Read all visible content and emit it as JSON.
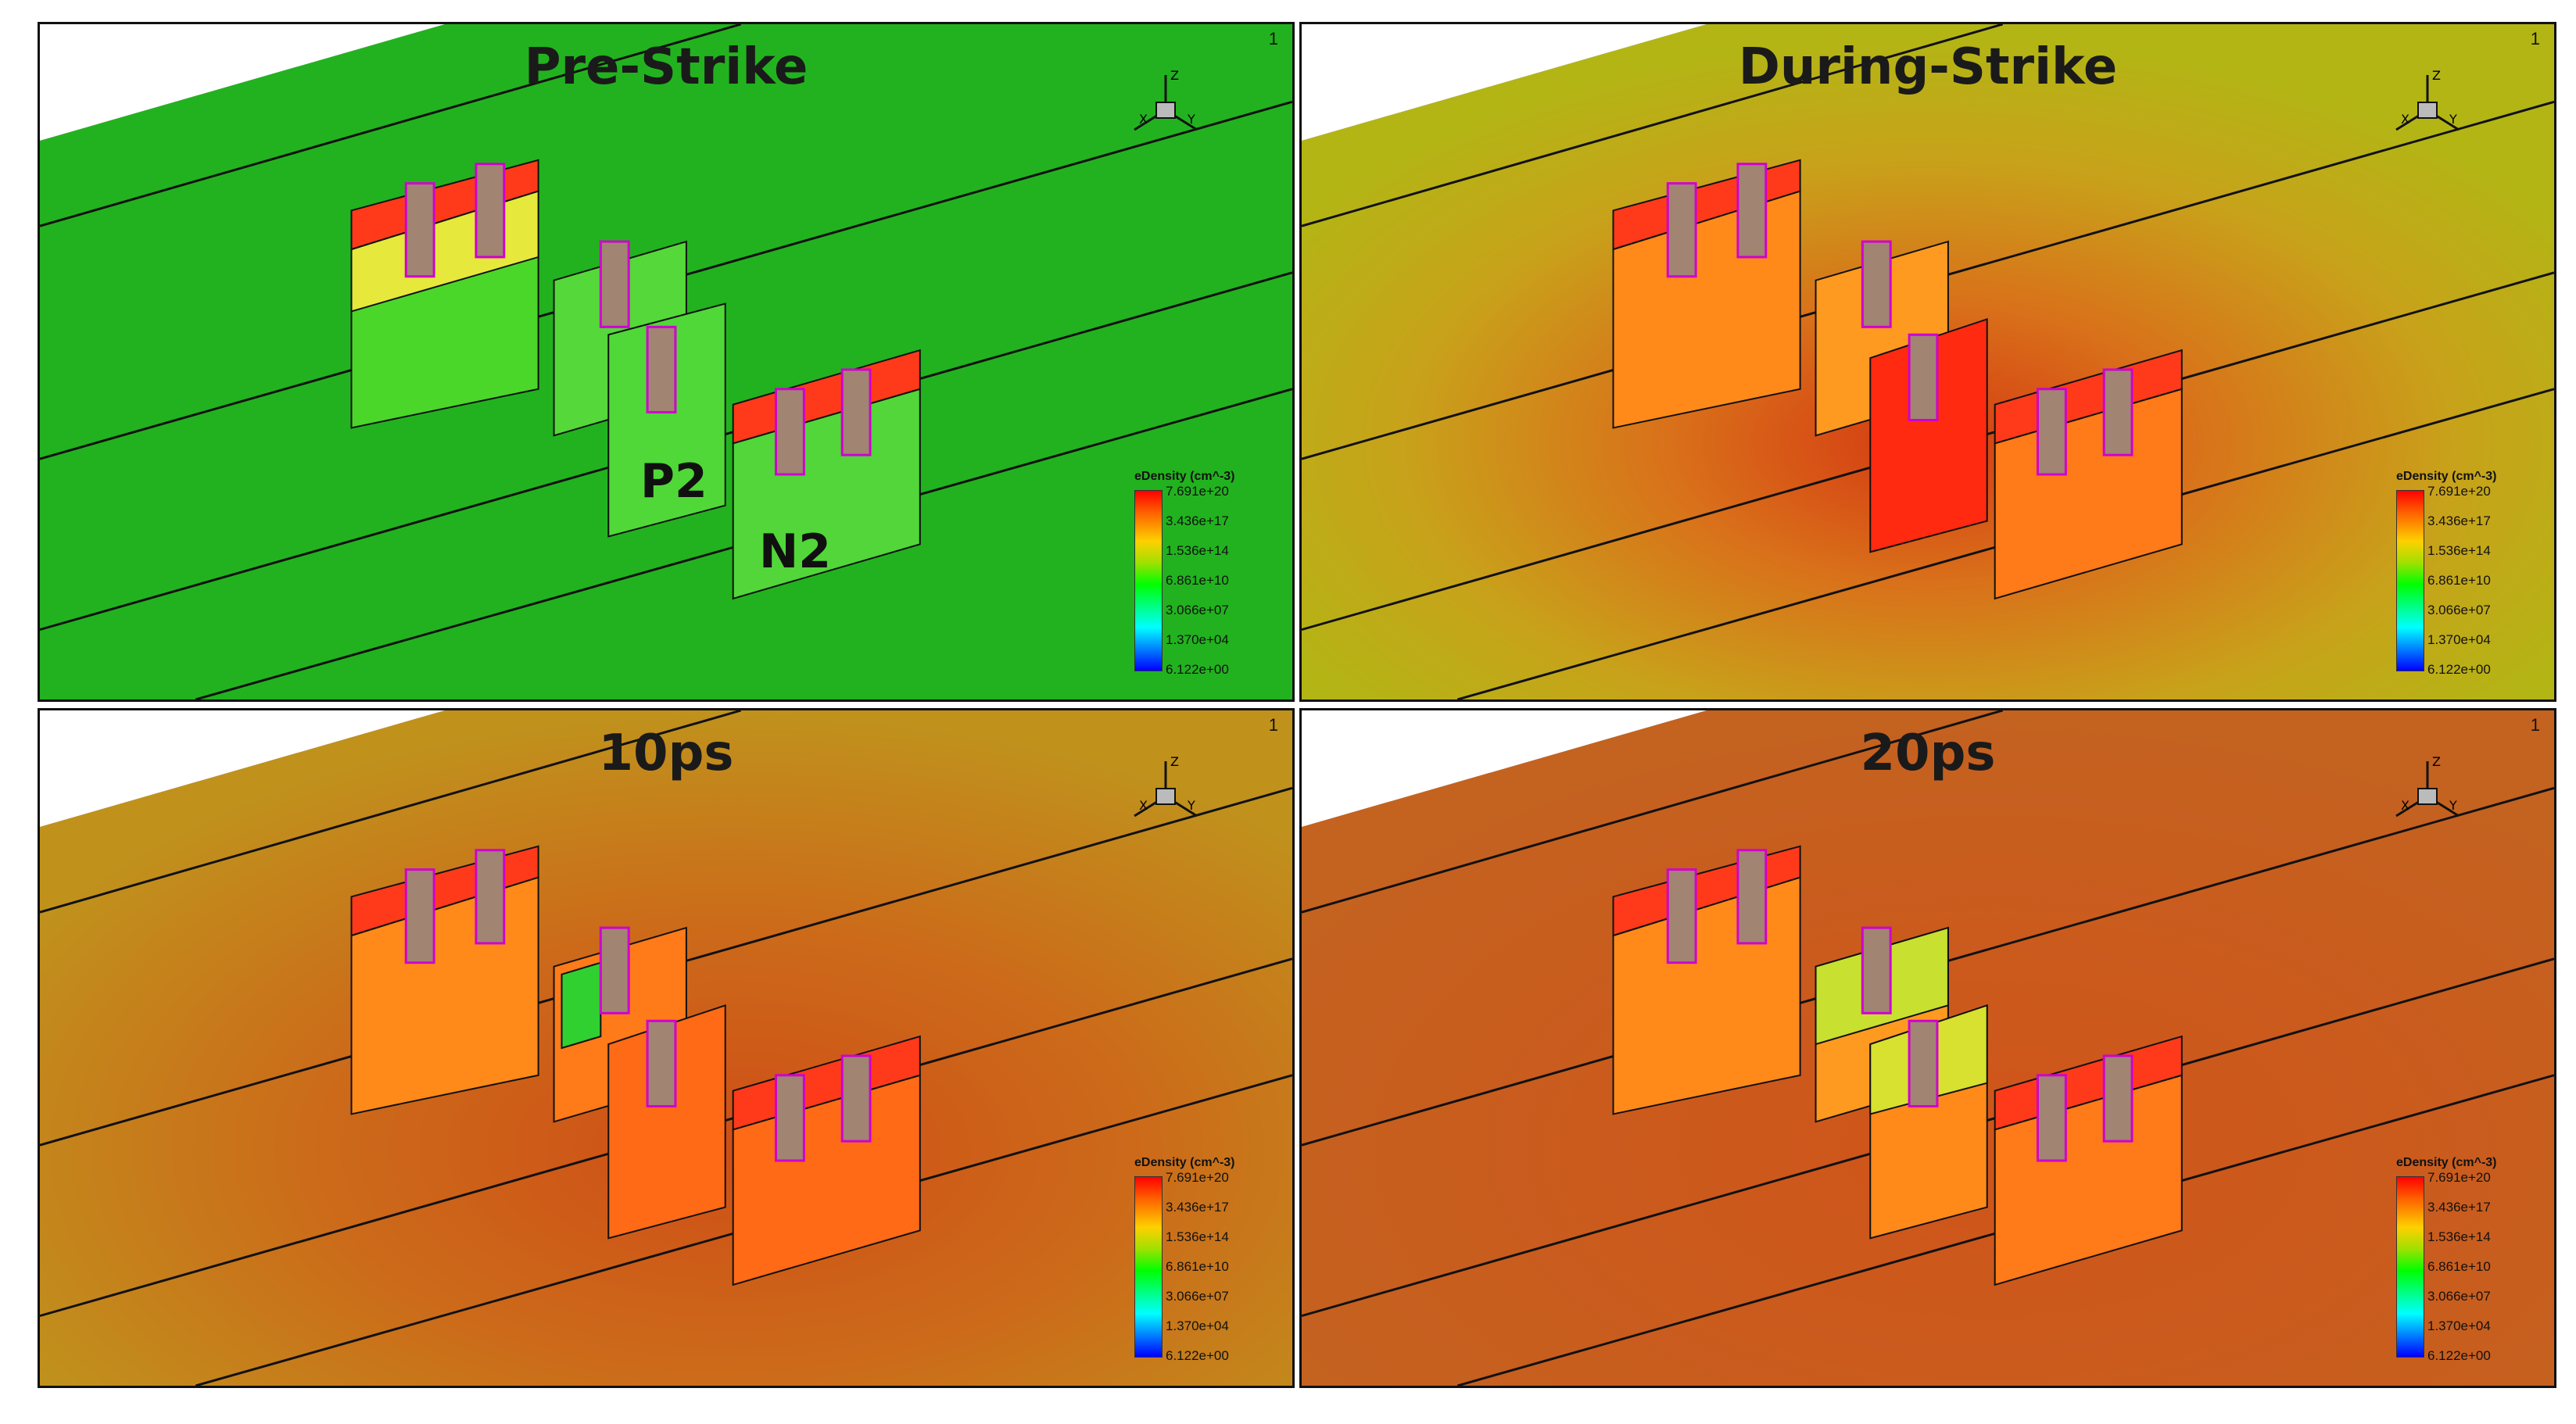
{
  "panels": [
    {
      "title": "Pre-Strike",
      "frame": "1"
    },
    {
      "title": "During-Strike",
      "frame": "1"
    },
    {
      "title": "10ps",
      "frame": "1"
    },
    {
      "title": "20ps",
      "frame": "1"
    }
  ],
  "labels": {
    "p2": "P2",
    "n2": "N2"
  },
  "axes": {
    "z": "Z",
    "x": "X",
    "y": "Y"
  },
  "legend": {
    "title": "eDensity (cm^-3)",
    "ticks": [
      "7.691e+20",
      "3.436e+17",
      "1.536e+14",
      "6.861e+10",
      "3.066e+07",
      "1.370e+04",
      "6.122e+00"
    ]
  },
  "colors": {
    "pre_strike": "#22b21f",
    "during_strike": "#b7b514",
    "ps10": "#c2701c",
    "ps20": "#c66420",
    "gate": "#a18472",
    "fin_red": "#ff3a1a",
    "edge_magenta": "#d000d0"
  }
}
